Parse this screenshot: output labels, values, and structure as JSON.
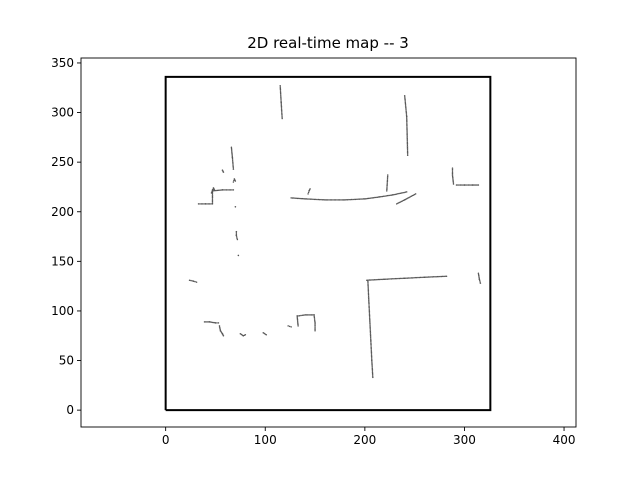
{
  "chart_data": {
    "type": "scatter",
    "title": "2D real-time map -- 3",
    "xlabel": "",
    "ylabel": "",
    "xlim": [
      -85,
      412
    ],
    "ylim": [
      -17,
      355
    ],
    "xticks": [
      0,
      100,
      200,
      300,
      400
    ],
    "yticks": [
      0,
      50,
      100,
      150,
      200,
      250,
      300,
      350
    ],
    "grid": false,
    "legend": "none",
    "boundary": {
      "label": "",
      "color": "#000000",
      "x": [
        0,
        326,
        326,
        0,
        0
      ],
      "y": [
        0,
        0,
        336,
        336,
        0
      ]
    },
    "scan_color": "#555555",
    "segments": [
      {
        "x": [
          115,
          116,
          117
        ],
        "y": [
          327,
          310,
          294
        ]
      },
      {
        "x": [
          240,
          242,
          243
        ],
        "y": [
          317,
          296,
          257
        ]
      },
      {
        "x": [
          66,
          67,
          68
        ],
        "y": [
          265,
          255,
          243
        ]
      },
      {
        "x": [
          57,
          58
        ],
        "y": [
          242,
          240
        ]
      },
      {
        "x": [
          46,
          47,
          48,
          49
        ],
        "y": [
          219,
          221,
          224,
          222
        ]
      },
      {
        "x": [
          68,
          69,
          70
        ],
        "y": [
          230,
          233,
          231
        ]
      },
      {
        "x": [
          47,
          57,
          68
        ],
        "y": [
          221,
          222,
          222
        ]
      },
      {
        "x": [
          47,
          47
        ],
        "y": [
          222,
          209
        ]
      },
      {
        "x": [
          33,
          40,
          47
        ],
        "y": [
          208,
          208,
          208
        ]
      },
      {
        "x": [
          70
        ],
        "y": [
          205
        ]
      },
      {
        "x": [
          71,
          71,
          72
        ],
        "y": [
          180,
          176,
          172
        ]
      },
      {
        "x": [
          73
        ],
        "y": [
          156
        ]
      },
      {
        "x": [
          126,
          140,
          160,
          180,
          200,
          215,
          228,
          242
        ],
        "y": [
          214,
          213,
          212,
          212,
          213,
          215,
          217,
          220
        ]
      },
      {
        "x": [
          143,
          144,
          145
        ],
        "y": [
          218,
          221,
          223
        ]
      },
      {
        "x": [
          222,
          223
        ],
        "y": [
          221,
          237
        ]
      },
      {
        "x": [
          232,
          240,
          251
        ],
        "y": [
          208,
          212,
          218
        ]
      },
      {
        "x": [
          288,
          288,
          289
        ],
        "y": [
          244,
          237,
          228
        ]
      },
      {
        "x": [
          292,
          300,
          308,
          314
        ],
        "y": [
          227,
          227,
          227,
          227
        ]
      },
      {
        "x": [
          202,
          220,
          240,
          260,
          282
        ],
        "y": [
          131,
          132,
          133,
          134,
          135
        ]
      },
      {
        "x": [
          203,
          204,
          205,
          206,
          207,
          208
        ],
        "y": [
          131,
          110,
          90,
          70,
          50,
          33
        ]
      },
      {
        "x": [
          314,
          315,
          316
        ],
        "y": [
          138,
          132,
          128
        ]
      },
      {
        "x": [
          24,
          28,
          31
        ],
        "y": [
          131,
          130,
          129
        ]
      },
      {
        "x": [
          39,
          44,
          50,
          53
        ],
        "y": [
          89,
          89,
          88,
          88
        ]
      },
      {
        "x": [
          54,
          55,
          57,
          58
        ],
        "y": [
          85,
          80,
          77,
          75
        ]
      },
      {
        "x": [
          75,
          78,
          80
        ],
        "y": [
          77,
          75,
          76
        ]
      },
      {
        "x": [
          98,
          101
        ],
        "y": [
          78,
          76
        ]
      },
      {
        "x": [
          123,
          126
        ],
        "y": [
          85,
          84
        ]
      },
      {
        "x": [
          133,
          140,
          149
        ],
        "y": [
          95,
          96,
          96
        ]
      },
      {
        "x": [
          132,
          133
        ],
        "y": [
          95,
          85
        ]
      },
      {
        "x": [
          149,
          150,
          150
        ],
        "y": [
          96,
          88,
          80
        ]
      }
    ]
  }
}
